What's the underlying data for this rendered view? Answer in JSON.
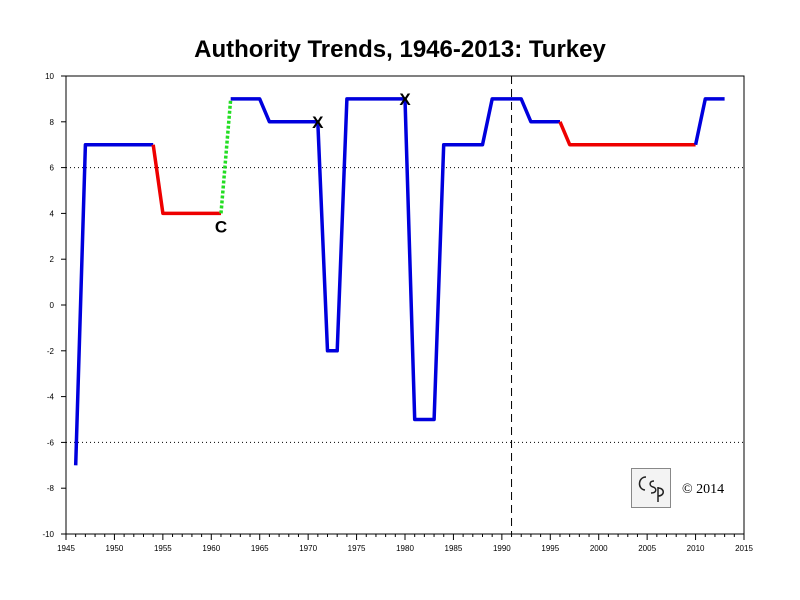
{
  "chart_data": {
    "type": "line",
    "title": "Authority Trends, 1946-2013: Turkey",
    "xlabel": "",
    "ylabel": "",
    "xlim": [
      1945,
      2015
    ],
    "ylim": [
      -10,
      10
    ],
    "x_ticks": [
      1945,
      1950,
      1955,
      1960,
      1965,
      1970,
      1975,
      1980,
      1985,
      1990,
      1995,
      2000,
      2005,
      2010,
      2015
    ],
    "y_ticks": [
      10,
      8,
      6,
      4,
      2,
      0,
      -2,
      -4,
      -6,
      -8,
      -10
    ],
    "reference_lines": {
      "horizontal_dotted": [
        6,
        -6
      ],
      "vertical_dashed": [
        1991
      ]
    },
    "segments": [
      {
        "color": "#0000dd",
        "style": "solid",
        "points": [
          [
            1946,
            -7
          ],
          [
            1947,
            7
          ],
          [
            1954,
            7
          ]
        ]
      },
      {
        "color": "#ee0000",
        "style": "solid",
        "points": [
          [
            1954,
            7
          ],
          [
            1955,
            4
          ],
          [
            1961,
            4
          ]
        ]
      },
      {
        "color": "#22dd22",
        "style": "dotted",
        "points": [
          [
            1961,
            4
          ],
          [
            1962,
            9
          ]
        ]
      },
      {
        "color": "#0000dd",
        "style": "solid",
        "points": [
          [
            1962,
            9
          ],
          [
            1965,
            9
          ],
          [
            1966,
            8
          ],
          [
            1971,
            8
          ],
          [
            1972,
            -2
          ],
          [
            1973,
            -2
          ],
          [
            1974,
            9
          ],
          [
            1980,
            9
          ],
          [
            1981,
            -5
          ],
          [
            1983,
            -5
          ],
          [
            1984,
            7
          ],
          [
            1988,
            7
          ],
          [
            1989,
            9
          ],
          [
            1992,
            9
          ],
          [
            1993,
            8
          ],
          [
            1996,
            8
          ]
        ]
      },
      {
        "color": "#ee0000",
        "style": "solid",
        "points": [
          [
            1996,
            8
          ],
          [
            1997,
            7
          ],
          [
            2010,
            7
          ]
        ]
      },
      {
        "color": "#0000dd",
        "style": "solid",
        "points": [
          [
            2010,
            7
          ],
          [
            2011,
            9
          ],
          [
            2013,
            9
          ]
        ]
      }
    ],
    "annotations": [
      {
        "text": "C",
        "x": 1961,
        "y": 4,
        "placement": "below"
      },
      {
        "text": "X",
        "x": 1971,
        "y": 8,
        "placement": "center"
      },
      {
        "text": "X",
        "x": 1980,
        "y": 9,
        "placement": "center"
      }
    ]
  },
  "copyright": "© 2014",
  "logo_text": "CSP"
}
